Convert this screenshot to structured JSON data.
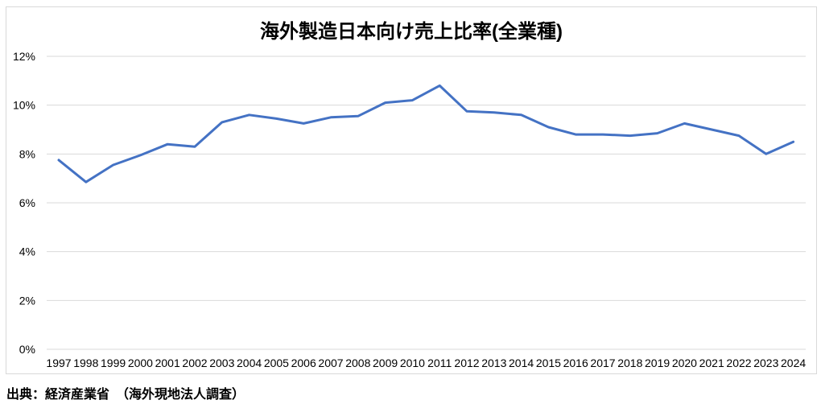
{
  "source_note": "出典：経済産業省　（海外現地法人調査）",
  "colors": {
    "line": "#4472C4",
    "gridline": "#D9D9D9",
    "frame_border": "#D9D9D9",
    "text": "#000000"
  },
  "chart_data": {
    "type": "line",
    "title": "海外製造日本向け売上比率(全業種)",
    "categories": [
      "1997",
      "1998",
      "1999",
      "2000",
      "2001",
      "2002",
      "2003",
      "2004",
      "2005",
      "2006",
      "2007",
      "2008",
      "2009",
      "2010",
      "2011",
      "2012",
      "2013",
      "2014",
      "2015",
      "2016",
      "2017",
      "2018",
      "2019",
      "2020",
      "2021",
      "2022",
      "2023",
      "2024"
    ],
    "values": [
      7.75,
      6.85,
      7.55,
      7.95,
      8.4,
      8.3,
      9.3,
      9.6,
      9.45,
      9.25,
      9.5,
      9.55,
      10.1,
      10.2,
      10.8,
      9.75,
      9.7,
      9.6,
      9.1,
      8.8,
      8.8,
      8.75,
      8.85,
      9.25,
      9.0,
      8.75,
      8.0,
      8.5
    ],
    "xlabel": "",
    "ylabel": "",
    "ylim": [
      0,
      12
    ],
    "y_ticks": [
      {
        "value": 0,
        "label": "0%"
      },
      {
        "value": 2,
        "label": "2%"
      },
      {
        "value": 4,
        "label": "4%"
      },
      {
        "value": 6,
        "label": "6%"
      },
      {
        "value": 8,
        "label": "8%"
      },
      {
        "value": 10,
        "label": "10%"
      },
      {
        "value": 12,
        "label": "12%"
      }
    ],
    "grid": true,
    "legend": "none",
    "markers": false
  }
}
